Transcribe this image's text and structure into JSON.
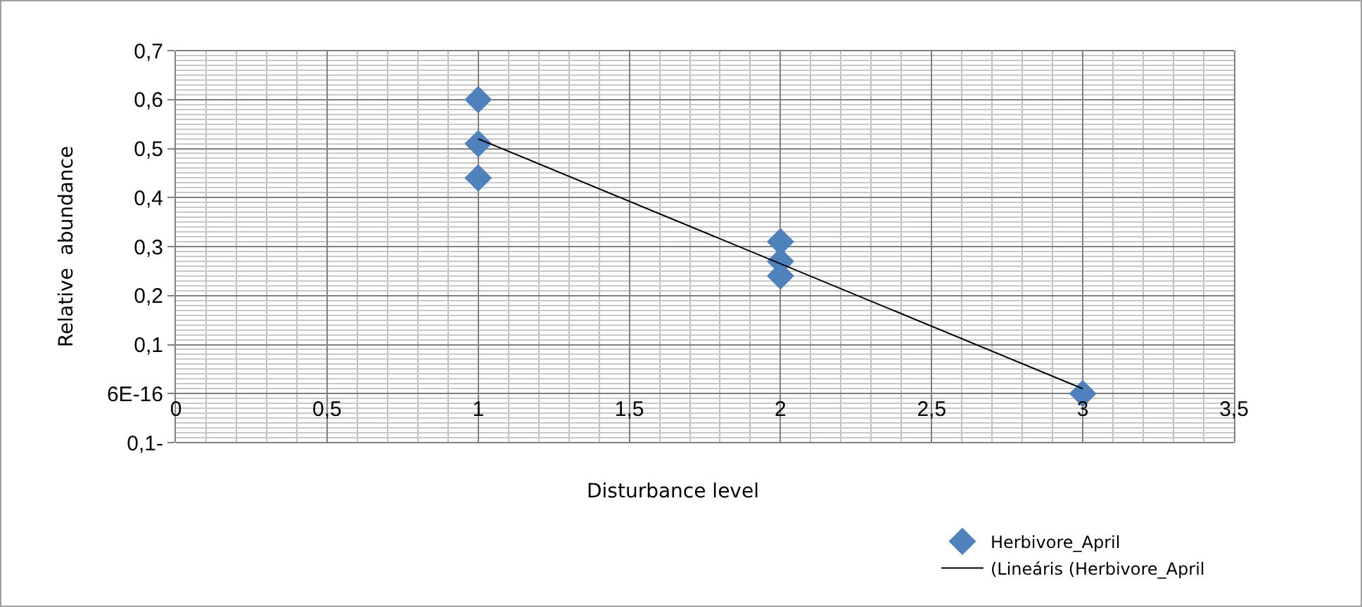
{
  "chart_data": {
    "type": "scatter",
    "xlabel": "Disturbance level",
    "ylabel": "Relative  abundance",
    "xlim": [
      0,
      3.5
    ],
    "xticks": [
      0,
      {
        "value": 0.5,
        "label": "0,5"
      },
      1,
      {
        "value": 1.5,
        "label": "1,5"
      },
      2,
      {
        "value": 2.5,
        "label": "2,5"
      },
      3,
      {
        "value": 3.5,
        "label": "3,5"
      }
    ],
    "ylim": [
      -0.1,
      0.7
    ],
    "yticks": [
      {
        "value": -0.1,
        "label": "0,1-"
      },
      {
        "value": 0,
        "label": "6E-16"
      },
      {
        "value": 0.1,
        "label": "0,1"
      },
      {
        "value": 0.2,
        "label": "0,2"
      },
      {
        "value": 0.3,
        "label": "0,3"
      },
      {
        "value": 0.4,
        "label": "0,4"
      },
      {
        "value": 0.5,
        "label": "0,5"
      },
      {
        "value": 0.6,
        "label": "0,6"
      },
      {
        "value": 0.7,
        "label": "0,7"
      }
    ],
    "grid": true,
    "legend": "bottom right",
    "series": [
      {
        "name": "Herbivore_April",
        "color": "#4f81bd",
        "marker": "diamond",
        "x": [
          1,
          1,
          1,
          2,
          2,
          2,
          3
        ],
        "values": [
          0.6,
          0.51,
          0.44,
          0.31,
          0.27,
          0.24,
          0
        ]
      },
      {
        "name": "(Lineáris (Herbivore_April",
        "type": "line",
        "marker": "none",
        "color": "#000000",
        "x": [
          1,
          3
        ],
        "values": [
          0.52,
          0.01
        ]
      }
    ]
  }
}
